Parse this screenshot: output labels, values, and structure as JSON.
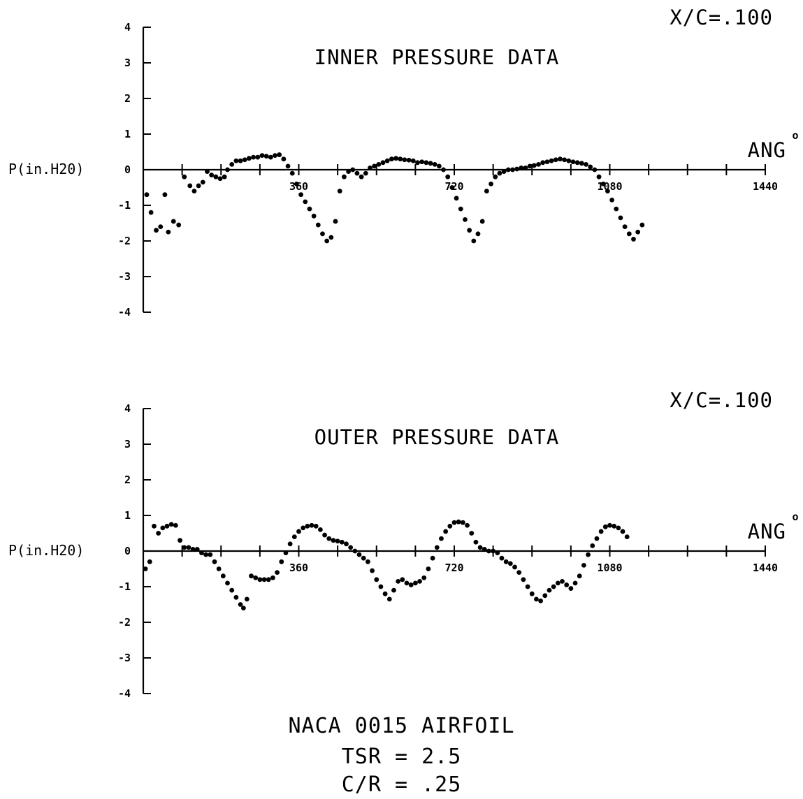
{
  "chart_data": [
    {
      "type": "scatter",
      "title": "INNER PRESSURE DATA",
      "corner_label": "X/C=.100",
      "xlabel": "ANG",
      "xlabel_degree": "o",
      "ylabel": "P(in.H20)",
      "xlim": [
        0,
        1440
      ],
      "ylim": [
        -4,
        4
      ],
      "xtick_labels": [
        "360",
        "720",
        "1080",
        "1440"
      ],
      "xtick_values": [
        360,
        720,
        1080,
        1440
      ],
      "ytick_labels": [
        "4",
        "3",
        "2",
        "1",
        "0",
        "-1",
        "-2",
        "-3",
        "-4"
      ],
      "ytick_values": [
        4,
        3,
        2,
        1,
        0,
        -1,
        -2,
        -3,
        -4
      ],
      "grid": false,
      "series": [
        {
          "points": [
            [
              8,
              -0.7
            ],
            [
              18,
              -1.2
            ],
            [
              30,
              -1.7
            ],
            [
              40,
              -1.6
            ],
            [
              50,
              -0.7
            ],
            [
              58,
              -1.75
            ],
            [
              70,
              -1.45
            ],
            [
              82,
              -1.55
            ],
            [
              95,
              -0.2
            ],
            [
              108,
              -0.45
            ],
            [
              118,
              -0.6
            ],
            [
              128,
              -0.45
            ],
            [
              138,
              -0.35
            ],
            [
              148,
              -0.05
            ],
            [
              158,
              -0.15
            ],
            [
              168,
              -0.2
            ],
            [
              178,
              -0.25
            ],
            [
              188,
              -0.2
            ],
            [
              195,
              0.0
            ],
            [
              205,
              0.15
            ],
            [
              215,
              0.25
            ],
            [
              225,
              0.25
            ],
            [
              235,
              0.28
            ],
            [
              245,
              0.32
            ],
            [
              255,
              0.35
            ],
            [
              265,
              0.35
            ],
            [
              275,
              0.4
            ],
            [
              285,
              0.38
            ],
            [
              295,
              0.35
            ],
            [
              305,
              0.4
            ],
            [
              315,
              0.42
            ],
            [
              325,
              0.3
            ],
            [
              335,
              0.1
            ],
            [
              345,
              -0.1
            ],
            [
              355,
              -0.4
            ],
            [
              365,
              -0.7
            ],
            [
              375,
              -0.9
            ],
            [
              385,
              -1.1
            ],
            [
              395,
              -1.3
            ],
            [
              405,
              -1.55
            ],
            [
              415,
              -1.8
            ],
            [
              425,
              -2.0
            ],
            [
              435,
              -1.9
            ],
            [
              445,
              -1.45
            ],
            [
              455,
              -0.6
            ],
            [
              465,
              -0.2
            ],
            [
              475,
              -0.05
            ],
            [
              485,
              0.0
            ],
            [
              495,
              -0.1
            ],
            [
              505,
              -0.2
            ],
            [
              515,
              -0.1
            ],
            [
              525,
              0.05
            ],
            [
              535,
              0.1
            ],
            [
              545,
              0.15
            ],
            [
              555,
              0.2
            ],
            [
              565,
              0.25
            ],
            [
              575,
              0.3
            ],
            [
              585,
              0.32
            ],
            [
              595,
              0.3
            ],
            [
              605,
              0.28
            ],
            [
              615,
              0.27
            ],
            [
              625,
              0.25
            ],
            [
              635,
              0.2
            ],
            [
              645,
              0.22
            ],
            [
              655,
              0.2
            ],
            [
              665,
              0.18
            ],
            [
              675,
              0.15
            ],
            [
              685,
              0.1
            ],
            [
              695,
              0.0
            ],
            [
              705,
              -0.2
            ],
            [
              715,
              -0.5
            ],
            [
              725,
              -0.8
            ],
            [
              735,
              -1.1
            ],
            [
              745,
              -1.4
            ],
            [
              755,
              -1.7
            ],
            [
              765,
              -2.0
            ],
            [
              775,
              -1.8
            ],
            [
              785,
              -1.45
            ],
            [
              795,
              -0.6
            ],
            [
              805,
              -0.4
            ],
            [
              815,
              -0.2
            ],
            [
              825,
              -0.1
            ],
            [
              835,
              -0.05
            ],
            [
              845,
              0.0
            ],
            [
              855,
              0.0
            ],
            [
              865,
              0.02
            ],
            [
              875,
              0.05
            ],
            [
              885,
              0.05
            ],
            [
              895,
              0.1
            ],
            [
              905,
              0.12
            ],
            [
              915,
              0.15
            ],
            [
              925,
              0.2
            ],
            [
              935,
              0.22
            ],
            [
              945,
              0.25
            ],
            [
              955,
              0.28
            ],
            [
              965,
              0.3
            ],
            [
              975,
              0.28
            ],
            [
              985,
              0.25
            ],
            [
              995,
              0.22
            ],
            [
              1005,
              0.2
            ],
            [
              1015,
              0.18
            ],
            [
              1025,
              0.15
            ],
            [
              1035,
              0.08
            ],
            [
              1045,
              0.0
            ],
            [
              1055,
              -0.2
            ],
            [
              1065,
              -0.4
            ],
            [
              1075,
              -0.6
            ],
            [
              1085,
              -0.85
            ],
            [
              1095,
              -1.1
            ],
            [
              1105,
              -1.35
            ],
            [
              1115,
              -1.6
            ],
            [
              1125,
              -1.8
            ],
            [
              1135,
              -1.95
            ],
            [
              1145,
              -1.75
            ],
            [
              1155,
              -1.55
            ]
          ]
        }
      ]
    },
    {
      "type": "scatter",
      "title": "OUTER PRESSURE DATA",
      "corner_label": "X/C=.100",
      "xlabel": "ANG",
      "xlabel_degree": "o",
      "ylabel": "P(in.H20)",
      "xlim": [
        0,
        1440
      ],
      "ylim": [
        -4,
        4
      ],
      "xtick_labels": [
        "360",
        "720",
        "1080",
        "1440"
      ],
      "xtick_values": [
        360,
        720,
        1080,
        1440
      ],
      "ytick_labels": [
        "4",
        "3",
        "2",
        "1",
        "0",
        "-1",
        "-2",
        "-3",
        "-4"
      ],
      "ytick_values": [
        4,
        3,
        2,
        1,
        0,
        -1,
        -2,
        -3,
        -4
      ],
      "grid": false,
      "series": [
        {
          "points": [
            [
              5,
              -0.5
            ],
            [
              15,
              -0.3
            ],
            [
              25,
              0.7
            ],
            [
              35,
              0.5
            ],
            [
              45,
              0.65
            ],
            [
              55,
              0.7
            ],
            [
              65,
              0.75
            ],
            [
              75,
              0.72
            ],
            [
              85,
              0.3
            ],
            [
              95,
              0.1
            ],
            [
              105,
              0.1
            ],
            [
              115,
              0.05
            ],
            [
              125,
              0.05
            ],
            [
              135,
              -0.05
            ],
            [
              145,
              -0.1
            ],
            [
              155,
              -0.1
            ],
            [
              165,
              -0.3
            ],
            [
              175,
              -0.5
            ],
            [
              185,
              -0.7
            ],
            [
              195,
              -0.9
            ],
            [
              205,
              -1.1
            ],
            [
              215,
              -1.3
            ],
            [
              225,
              -1.5
            ],
            [
              232,
              -1.6
            ],
            [
              240,
              -1.35
            ],
            [
              250,
              -0.7
            ],
            [
              260,
              -0.75
            ],
            [
              270,
              -0.8
            ],
            [
              280,
              -0.8
            ],
            [
              290,
              -0.8
            ],
            [
              300,
              -0.75
            ],
            [
              310,
              -0.6
            ],
            [
              320,
              -0.3
            ],
            [
              330,
              -0.05
            ],
            [
              340,
              0.2
            ],
            [
              350,
              0.4
            ],
            [
              360,
              0.55
            ],
            [
              370,
              0.65
            ],
            [
              380,
              0.7
            ],
            [
              390,
              0.72
            ],
            [
              400,
              0.7
            ],
            [
              410,
              0.6
            ],
            [
              420,
              0.45
            ],
            [
              430,
              0.35
            ],
            [
              440,
              0.3
            ],
            [
              450,
              0.28
            ],
            [
              460,
              0.25
            ],
            [
              470,
              0.2
            ],
            [
              480,
              0.1
            ],
            [
              490,
              0.0
            ],
            [
              500,
              -0.1
            ],
            [
              510,
              -0.2
            ],
            [
              520,
              -0.3
            ],
            [
              530,
              -0.55
            ],
            [
              540,
              -0.8
            ],
            [
              550,
              -1.0
            ],
            [
              560,
              -1.2
            ],
            [
              570,
              -1.35
            ],
            [
              580,
              -1.1
            ],
            [
              590,
              -0.85
            ],
            [
              600,
              -0.8
            ],
            [
              610,
              -0.9
            ],
            [
              620,
              -0.95
            ],
            [
              630,
              -0.9
            ],
            [
              640,
              -0.85
            ],
            [
              650,
              -0.75
            ],
            [
              660,
              -0.5
            ],
            [
              670,
              -0.2
            ],
            [
              680,
              0.1
            ],
            [
              690,
              0.35
            ],
            [
              700,
              0.55
            ],
            [
              710,
              0.7
            ],
            [
              720,
              0.8
            ],
            [
              730,
              0.82
            ],
            [
              740,
              0.8
            ],
            [
              750,
              0.72
            ],
            [
              760,
              0.5
            ],
            [
              770,
              0.25
            ],
            [
              780,
              0.1
            ],
            [
              790,
              0.05
            ],
            [
              800,
              0.0
            ],
            [
              810,
              0.0
            ],
            [
              820,
              -0.05
            ],
            [
              830,
              -0.2
            ],
            [
              840,
              -0.3
            ],
            [
              850,
              -0.35
            ],
            [
              860,
              -0.45
            ],
            [
              870,
              -0.6
            ],
            [
              880,
              -0.8
            ],
            [
              890,
              -1.0
            ],
            [
              900,
              -1.2
            ],
            [
              910,
              -1.35
            ],
            [
              920,
              -1.4
            ],
            [
              930,
              -1.25
            ],
            [
              940,
              -1.1
            ],
            [
              950,
              -1.0
            ],
            [
              960,
              -0.9
            ],
            [
              970,
              -0.85
            ],
            [
              980,
              -0.95
            ],
            [
              990,
              -1.05
            ],
            [
              1000,
              -0.9
            ],
            [
              1010,
              -0.7
            ],
            [
              1020,
              -0.4
            ],
            [
              1030,
              -0.1
            ],
            [
              1040,
              0.15
            ],
            [
              1050,
              0.35
            ],
            [
              1060,
              0.55
            ],
            [
              1070,
              0.68
            ],
            [
              1080,
              0.72
            ],
            [
              1090,
              0.7
            ],
            [
              1100,
              0.65
            ],
            [
              1110,
              0.55
            ],
            [
              1120,
              0.4
            ]
          ]
        }
      ]
    }
  ],
  "caption": {
    "line1": "NACA 0015 AIRFOIL",
    "line2": "TSR = 2.5",
    "line3": "C/R = .25"
  }
}
